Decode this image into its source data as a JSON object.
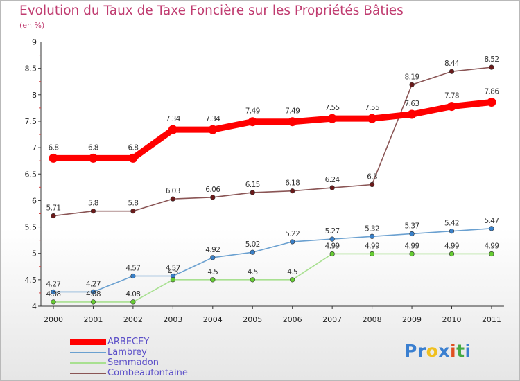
{
  "title": "Evolution du Taux de Taxe Foncière sur les Propriétés Bâties",
  "unit_label": "(en %)",
  "brand": {
    "name": "Proxiti",
    "letters": [
      {
        "ch": "P",
        "color": "#3a7fd0"
      },
      {
        "ch": "r",
        "color": "#3a7fd0"
      },
      {
        "ch": "o",
        "color": "#f0c020"
      },
      {
        "ch": "x",
        "color": "#3a7fd0"
      },
      {
        "ch": "i",
        "color": "#e05020"
      },
      {
        "ch": "t",
        "color": "#44aa44"
      },
      {
        "ch": "i",
        "color": "#3a7fd0"
      }
    ]
  },
  "chart_data": {
    "type": "line",
    "title": "Evolution du Taux de Taxe Foncière sur les Propriétés Bâties",
    "ylabel": "(en %)",
    "xlabel": "",
    "x": [
      "2000",
      "2001",
      "2002",
      "2003",
      "2004",
      "2005",
      "2006",
      "2007",
      "2008",
      "2009",
      "2010",
      "2011"
    ],
    "ylim": [
      4,
      9
    ],
    "yticks": [
      "4",
      "4.5",
      "5",
      "5.5",
      "6",
      "6.5",
      "7",
      "7.5",
      "8",
      "8.5",
      "9"
    ],
    "grid": false,
    "legend_position": "bottom-left",
    "series": [
      {
        "name": "ARBECEY",
        "color": "#ff0000",
        "marker": "#ff0000",
        "width": "heavy",
        "values": [
          6.8,
          6.8,
          6.8,
          7.34,
          7.34,
          7.49,
          7.49,
          7.55,
          7.55,
          7.63,
          7.78,
          7.86
        ],
        "labels": [
          "6.8",
          "6.8",
          "6.8",
          "7.34",
          "7.34",
          "7.49",
          "7.49",
          "7.55",
          "7.55",
          "7.63",
          "7.78",
          "7.86"
        ]
      },
      {
        "name": "Lambrey",
        "color": "#6aa0d0",
        "marker": "#3a80c8",
        "width": "thin",
        "values": [
          4.27,
          4.27,
          4.57,
          4.57,
          4.92,
          5.02,
          5.22,
          5.27,
          5.32,
          5.37,
          5.42,
          5.47
        ],
        "labels": [
          "4.27",
          "4.27",
          "4.57",
          "4.57",
          "4.92",
          "5.02",
          "5.22",
          "5.27",
          "5.32",
          "5.37",
          "5.42",
          "5.47"
        ]
      },
      {
        "name": "Semmadon",
        "color": "#a8e090",
        "marker": "#66cc33",
        "width": "thin",
        "values": [
          4.08,
          4.08,
          4.08,
          4.5,
          4.5,
          4.5,
          4.5,
          4.99,
          4.99,
          4.99,
          4.99,
          4.99
        ],
        "labels": [
          "4.08",
          "4.08",
          "4.08",
          "4.5",
          "4.5",
          "4.5",
          "4.5",
          "4.99",
          "4.99",
          "4.99",
          "4.99",
          "4.99"
        ]
      },
      {
        "name": "Combeaufontaine",
        "color": "#8a5555",
        "marker": "#6a1a1a",
        "width": "thin",
        "values": [
          5.71,
          5.8,
          5.8,
          6.03,
          6.06,
          6.15,
          6.18,
          6.24,
          6.3,
          8.19,
          8.44,
          8.52
        ],
        "labels": [
          "5.71",
          "5.8",
          "5.8",
          "6.03",
          "6.06",
          "6.15",
          "6.18",
          "6.24",
          "6.3",
          "8.19",
          "8.44",
          "8.52"
        ]
      }
    ]
  }
}
